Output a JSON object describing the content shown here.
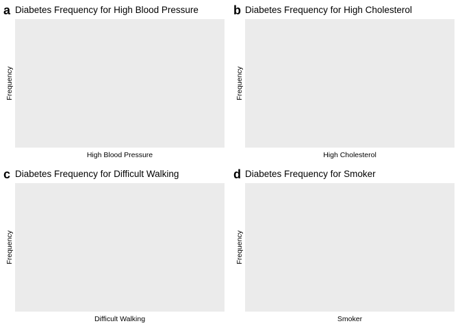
{
  "chart_data": [
    {
      "type": "bar",
      "panel_label": "a",
      "title": "Diabetes Frequency for High Blood Pressure",
      "xlabel": "High Blood Pressure",
      "ylabel": "Frequency",
      "categories": [],
      "series": []
    },
    {
      "type": "bar",
      "panel_label": "b",
      "title": "Diabetes Frequency for High Cholesterol",
      "xlabel": "High Cholesterol",
      "ylabel": "Frequency",
      "categories": [],
      "series": []
    },
    {
      "type": "bar",
      "panel_label": "c",
      "title": "Diabetes Frequency for Difficult Walking",
      "xlabel": "Difficult Walking",
      "ylabel": "Frequency",
      "categories": [],
      "series": []
    },
    {
      "type": "bar",
      "panel_label": "d",
      "title": "Diabetes Frequency for Smoker",
      "xlabel": "Smoker",
      "ylabel": "Frequency",
      "categories": [],
      "series": []
    }
  ],
  "colors": {
    "panel_background": "#ebebeb"
  }
}
